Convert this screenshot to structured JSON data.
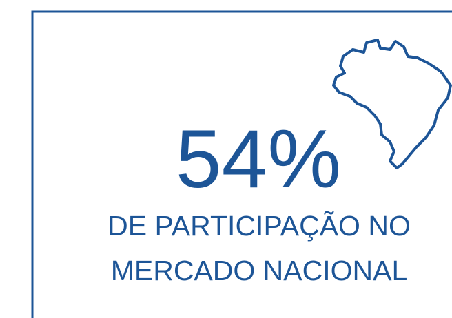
{
  "stat": {
    "value": "54%",
    "label_lines": [
      "DE PARTICIPAÇÃO NO",
      "MERCADO NACIONAL"
    ]
  }
}
